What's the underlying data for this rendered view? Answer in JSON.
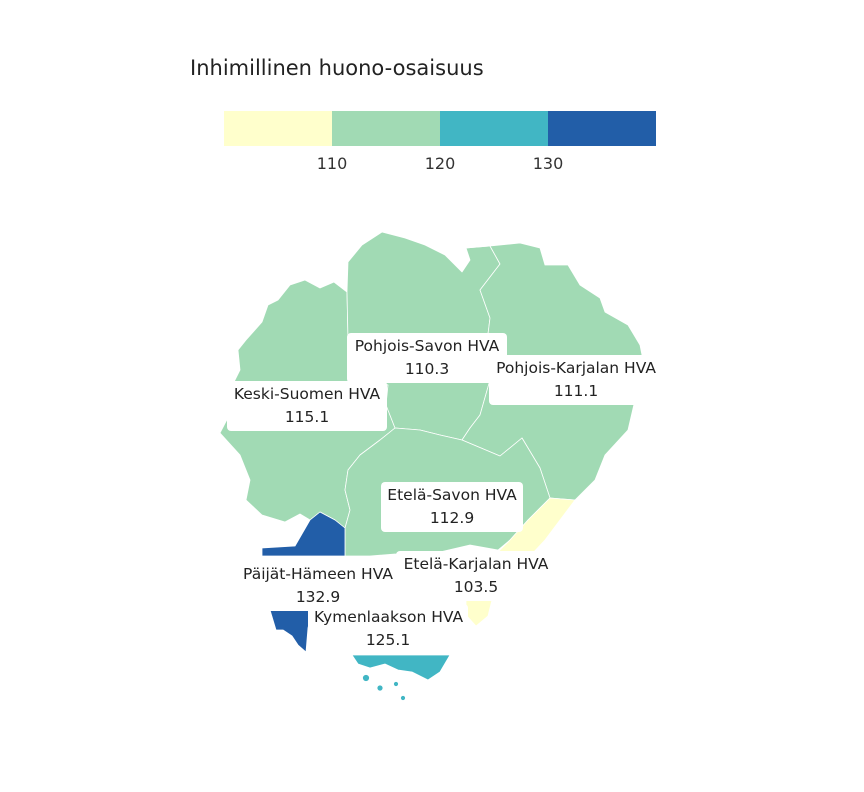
{
  "legend": {
    "title": "Inhimillinen huono-osaisuus",
    "colors": [
      "#ffffcc",
      "#a1dab4",
      "#41b6c4",
      "#225ea8"
    ],
    "ticks": [
      "110",
      "120",
      "130"
    ]
  },
  "regions": [
    {
      "name": "Pohjois-Savon HVA",
      "value": "110.3",
      "color": "#a1dab4"
    },
    {
      "name": "Pohjois-Karjalan HVA",
      "value": "111.1",
      "color": "#a1dab4"
    },
    {
      "name": "Keski-Suomen HVA",
      "value": "115.1",
      "color": "#a1dab4"
    },
    {
      "name": "Etelä-Savon HVA",
      "value": "112.9",
      "color": "#a1dab4"
    },
    {
      "name": "Päijät-Hämeen HVA",
      "value": "132.9",
      "color": "#225ea8"
    },
    {
      "name": "Etelä-Karjalan HVA",
      "value": "103.5",
      "color": "#ffffcc"
    },
    {
      "name": "Kymenlaakson HVA",
      "value": "125.1",
      "color": "#41b6c4"
    }
  ]
}
